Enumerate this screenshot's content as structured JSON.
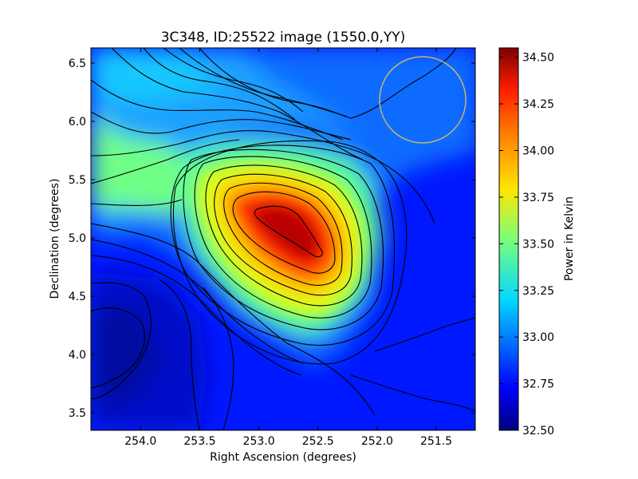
{
  "chart_data": {
    "type": "heatmap",
    "title": "3C348, ID:25522 image (1550.0,YY)",
    "xlabel": "Right Ascension (degrees)",
    "ylabel": "Declination (degrees)",
    "xlim": [
      254.42,
      251.17
    ],
    "ylim": [
      3.35,
      6.63
    ],
    "x_ticks": [
      254.0,
      253.5,
      253.0,
      252.5,
      252.0,
      251.5
    ],
    "x_tick_labels": [
      "254.0",
      "253.5",
      "253.0",
      "252.5",
      "252.0",
      "251.5"
    ],
    "y_ticks": [
      3.5,
      4.0,
      4.5,
      5.0,
      5.5,
      6.0,
      6.5
    ],
    "y_tick_labels": [
      "3.5",
      "4.0",
      "4.5",
      "5.0",
      "5.5",
      "6.0",
      "6.5"
    ],
    "colorbar": {
      "label": "Power in Kelvin",
      "range": [
        32.5,
        34.55
      ],
      "ticks": [
        32.5,
        32.75,
        33.0,
        33.25,
        33.5,
        33.75,
        34.0,
        34.25,
        34.5
      ],
      "tick_labels": [
        "32.50",
        "32.75",
        "33.00",
        "33.25",
        "33.50",
        "33.75",
        "34.00",
        "34.25",
        "34.50"
      ],
      "colormap": "jet"
    },
    "peak": {
      "ra": 252.75,
      "dec": 5.05,
      "value": 34.5
    },
    "minimum": {
      "ra": 254.3,
      "dec": 4.05,
      "value": 32.5
    },
    "beam_circle": {
      "ra": 251.6,
      "dec": 6.18,
      "radius_deg": 0.37,
      "color": "#c8b46e"
    },
    "contour_color": "#000000"
  }
}
